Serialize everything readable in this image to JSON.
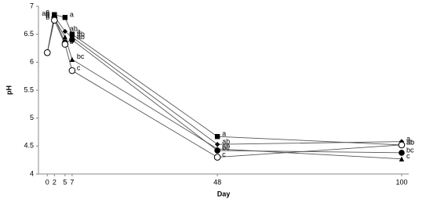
{
  "chart_data": {
    "type": "line",
    "x_label": "Day",
    "y_label": "pH",
    "x": [
      0,
      2,
      5,
      7,
      48,
      100
    ],
    "xlim": [
      -2.5,
      102
    ],
    "xticks": [
      0,
      2,
      5,
      7,
      48,
      100
    ],
    "ylim": [
      4,
      7
    ],
    "yticks": [
      4,
      4.5,
      5,
      5.5,
      6,
      6.5,
      7
    ],
    "grid": false,
    "series": [
      {
        "color": "#000000",
        "marker": "square",
        "values": [
          6.17,
          6.85,
          6.8,
          6.5,
          4.67,
          4.52
        ],
        "labels": [
          null,
          "a",
          "a",
          "a",
          "a",
          "ab"
        ]
      },
      {
        "color": "#000000",
        "marker": "diamond",
        "values": [
          6.17,
          6.82,
          6.55,
          6.45,
          4.53,
          4.58
        ],
        "labels": [
          null,
          "ab",
          "ab",
          "ab",
          "ab",
          "a"
        ]
      },
      {
        "color": "#000000",
        "marker": "triangle",
        "values": [
          6.17,
          6.78,
          6.45,
          6.05,
          4.45,
          4.27
        ],
        "labels": [
          null,
          "b",
          "b",
          "bc",
          "ab",
          "c"
        ]
      },
      {
        "color": "#000000",
        "marker": "circle",
        "values": [
          6.17,
          6.8,
          6.35,
          6.4,
          4.42,
          4.38
        ],
        "labels": [
          null,
          "b",
          "b",
          "ab",
          "bc",
          "bc"
        ]
      },
      {
        "color": "#000000",
        "marker": "open-circle",
        "values": [
          6.17,
          6.75,
          6.32,
          5.85,
          4.3,
          4.52
        ],
        "labels": [
          null,
          "b",
          "b",
          "c",
          "c",
          "ab"
        ]
      }
    ]
  }
}
